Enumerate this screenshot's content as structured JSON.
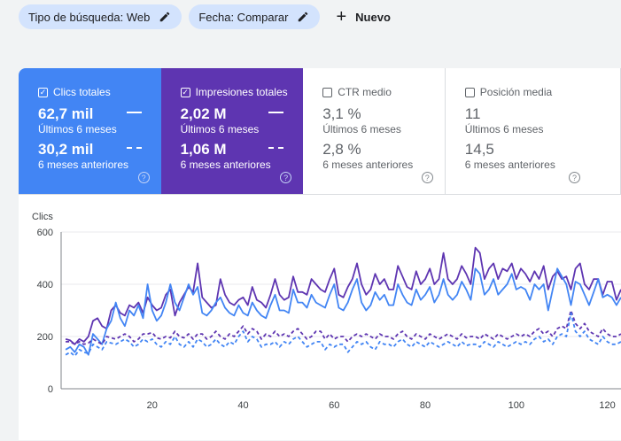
{
  "filters": {
    "search_type_label": "Tipo de búsqueda: Web",
    "date_label": "Fecha: Comparar",
    "new_label": "Nuevo"
  },
  "cards": {
    "clicks": {
      "label": "Clics totales",
      "current_value": "62,7 mil",
      "current_period": "Últimos 6 meses",
      "previous_value": "30,2 mil",
      "previous_period": "6 meses anteriores",
      "color": "#4285f4"
    },
    "impressions": {
      "label": "Impresiones totales",
      "current_value": "2,02 M",
      "current_period": "Últimos 6 meses",
      "previous_value": "1,06 M",
      "previous_period": "6 meses anteriores",
      "color": "#5e35b1"
    },
    "ctr": {
      "label": "CTR medio",
      "current_value": "3,1 %",
      "current_period": "Últimos 6 meses",
      "previous_value": "2,8 %",
      "previous_period": "6 meses anteriores"
    },
    "position": {
      "label": "Posición media",
      "current_value": "11",
      "current_period": "Últimos 6 meses",
      "previous_value": "14,5",
      "previous_period": "6 meses anteriores"
    }
  },
  "chart_data": {
    "type": "line",
    "ylabel": "Clics",
    "ylim": [
      0,
      600
    ],
    "yticks": [
      0,
      200,
      400,
      600
    ],
    "xticks": [
      20,
      40,
      60,
      80,
      100,
      120
    ],
    "xlim": [
      0,
      123
    ],
    "series": [
      {
        "name": "Impresiones totales (Últimos 6 meses)",
        "color": "#5e35b1",
        "dashed": false,
        "values": [
          190,
          185,
          170,
          190,
          180,
          200,
          260,
          270,
          240,
          230,
          300,
          320,
          290,
          280,
          320,
          310,
          330,
          290,
          350,
          320,
          300,
          310,
          360,
          380,
          280,
          330,
          360,
          390,
          370,
          480,
          350,
          330,
          310,
          320,
          420,
          360,
          330,
          320,
          340,
          350,
          320,
          390,
          340,
          330,
          310,
          360,
          420,
          360,
          340,
          350,
          430,
          370,
          370,
          360,
          420,
          400,
          380,
          370,
          420,
          460,
          360,
          350,
          390,
          420,
          480,
          400,
          360,
          380,
          440,
          400,
          420,
          380,
          380,
          470,
          430,
          390,
          380,
          450,
          400,
          420,
          460,
          400,
          420,
          520,
          420,
          400,
          420,
          470,
          440,
          400,
          540,
          520,
          420,
          460,
          480,
          420,
          460,
          450,
          480,
          420,
          460,
          440,
          410,
          450,
          420,
          470,
          380,
          430,
          450,
          420,
          430,
          380,
          460,
          480,
          400,
          380,
          420,
          420,
          360,
          410,
          410,
          340,
          380
        ]
      },
      {
        "name": "Clics totales (Últimos 6 meses)",
        "color": "#4285f4",
        "dashed": false,
        "values": [
          150,
          160,
          140,
          170,
          160,
          130,
          210,
          190,
          170,
          230,
          260,
          330,
          270,
          240,
          300,
          280,
          320,
          270,
          400,
          300,
          260,
          280,
          330,
          400,
          330,
          300,
          350,
          400,
          360,
          390,
          290,
          280,
          300,
          330,
          350,
          310,
          290,
          280,
          320,
          290,
          280,
          330,
          300,
          280,
          270,
          320,
          360,
          300,
          300,
          290,
          380,
          330,
          330,
          310,
          360,
          330,
          320,
          310,
          360,
          400,
          310,
          300,
          330,
          380,
          420,
          330,
          300,
          320,
          370,
          340,
          360,
          320,
          320,
          400,
          360,
          330,
          320,
          380,
          340,
          360,
          390,
          330,
          360,
          420,
          360,
          340,
          360,
          410,
          380,
          340,
          460,
          440,
          360,
          380,
          420,
          360,
          380,
          400,
          440,
          380,
          390,
          380,
          340,
          400,
          380,
          400,
          300,
          380,
          460,
          430,
          400,
          320,
          410,
          400,
          360,
          320,
          370,
          420,
          350,
          360,
          350,
          320,
          350
        ]
      },
      {
        "name": "Impresiones totales (6 meses anteriores)",
        "color": "#5e35b1",
        "dashed": true,
        "values": [
          180,
          180,
          170,
          180,
          170,
          175,
          190,
          180,
          170,
          200,
          195,
          190,
          200,
          210,
          200,
          180,
          190,
          210,
          210,
          215,
          195,
          190,
          200,
          195,
          220,
          200,
          195,
          210,
          190,
          210,
          210,
          190,
          200,
          220,
          200,
          190,
          210,
          200,
          220,
          240,
          210,
          230,
          220,
          190,
          210,
          200,
          220,
          200,
          210,
          200,
          220,
          230,
          210,
          190,
          200,
          220,
          220,
          190,
          210,
          190,
          200,
          200,
          180,
          200,
          210,
          200,
          210,
          200,
          190,
          210,
          200,
          200,
          190,
          210,
          220,
          200,
          190,
          210,
          200,
          190,
          210,
          200,
          190,
          200,
          210,
          200,
          190,
          210,
          195,
          200,
          200,
          190,
          210,
          200,
          190,
          210,
          200,
          190,
          200,
          210,
          200,
          210,
          200,
          220,
          230,
          210,
          220,
          200,
          230,
          240,
          230,
          300,
          250,
          230,
          250,
          220,
          210,
          200,
          230,
          210,
          200,
          200,
          210
        ]
      },
      {
        "name": "Clics totales (6 meses anteriores)",
        "color": "#4285f4",
        "dashed": true,
        "values": [
          130,
          140,
          125,
          150,
          140,
          135,
          170,
          160,
          150,
          180,
          175,
          170,
          180,
          190,
          180,
          160,
          170,
          190,
          180,
          190,
          170,
          160,
          180,
          170,
          200,
          170,
          160,
          180,
          160,
          190,
          180,
          160,
          170,
          190,
          170,
          160,
          180,
          170,
          200,
          220,
          180,
          200,
          190,
          160,
          170,
          170,
          180,
          160,
          180,
          170,
          190,
          200,
          180,
          160,
          170,
          180,
          180,
          150,
          170,
          160,
          170,
          170,
          140,
          160,
          180,
          170,
          180,
          160,
          150,
          180,
          170,
          170,
          160,
          180,
          190,
          170,
          160,
          180,
          170,
          160,
          180,
          170,
          160,
          170,
          180,
          170,
          160,
          180,
          165,
          170,
          170,
          160,
          180,
          170,
          160,
          180,
          170,
          160,
          170,
          180,
          170,
          180,
          170,
          190,
          200,
          180,
          190,
          170,
          200,
          210,
          200,
          290,
          220,
          200,
          220,
          190,
          180,
          170,
          200,
          180,
          170,
          170,
          180
        ]
      }
    ]
  }
}
